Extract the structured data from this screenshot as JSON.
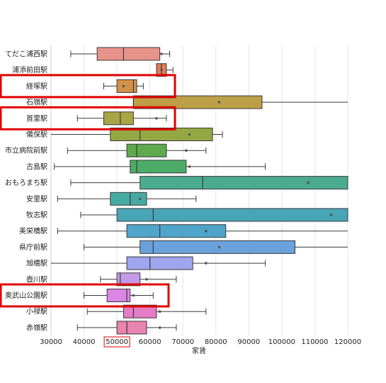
{
  "chart_data": {
    "type": "box",
    "title": "",
    "xlabel": "家賃",
    "ylabel": "",
    "xlim": [
      30000,
      120000
    ],
    "x_ticks": [
      30000,
      40000,
      50000,
      60000,
      70000,
      80000,
      90000,
      100000,
      110000,
      120000
    ],
    "x_tick_labels": [
      "30000",
      "40000",
      "50000",
      "60000",
      "70000",
      "80000",
      "90000",
      "100000",
      "110000",
      "120000"
    ],
    "grid": true,
    "orientation": "horizontal",
    "categories": [
      "てだこ浦西駅",
      "浦添前田駅",
      "経塚駅",
      "石嶺駅",
      "首里駅",
      "儀保駅",
      "市立病院前駅",
      "古島駅",
      "おもろまち駅",
      "安里駅",
      "牧志駅",
      "美栄橋駅",
      "県庁前駅",
      "旭橋駅",
      "壺川駅",
      "奥武山公園駅",
      "小禄駅",
      "赤嶺駅"
    ],
    "boxes": [
      {
        "min": 36000,
        "q1": 44000,
        "median": 52000,
        "q3": 63000,
        "max": 66000,
        "mean": 63500,
        "color": "#e8938a"
      },
      {
        "min": 62000,
        "q1": 62000,
        "median": 63500,
        "q3": 65000,
        "max": 67000,
        "mean": 63500,
        "color": "#e07b59"
      },
      {
        "min": 46000,
        "q1": 50000,
        "median": 55000,
        "q3": 56000,
        "max": 58000,
        "mean": 52000,
        "color": "#d4914a"
      },
      {
        "min": 55000,
        "q1": 55000,
        "median": 55000,
        "q3": 94000,
        "max": 120000,
        "mean": 81000,
        "color": "#bc9f47"
      },
      {
        "min": 38000,
        "q1": 46000,
        "median": 51000,
        "q3": 55000,
        "max": 65000,
        "mean": 62000,
        "color": "#a8a544"
      },
      {
        "min": 30000,
        "q1": 48000,
        "median": 57000,
        "q3": 79000,
        "max": 82000,
        "mean": 72000,
        "color": "#93a843"
      },
      {
        "min": 35000,
        "q1": 53000,
        "median": 56000,
        "q3": 65000,
        "max": 77000,
        "mean": 71000,
        "color": "#5eaa4c"
      },
      {
        "min": 31000,
        "q1": 54000,
        "median": 56000,
        "q3": 71000,
        "max": 95000,
        "mean": 72000,
        "color": "#4dab68"
      },
      {
        "min": 36000,
        "q1": 57000,
        "median": 76000,
        "q3": 120000,
        "max": 120000,
        "mean": 108000,
        "color": "#4aab8f"
      },
      {
        "min": 32000,
        "q1": 48000,
        "median": 54000,
        "q3": 59000,
        "max": 74000,
        "mean": 57000,
        "color": "#47a9a3"
      },
      {
        "min": 39000,
        "q1": 50000,
        "median": 61000,
        "q3": 120000,
        "max": 120000,
        "mean": 115000,
        "color": "#48a5b6"
      },
      {
        "min": 32000,
        "q1": 53000,
        "median": 63000,
        "q3": 83000,
        "max": 120000,
        "mean": 77000,
        "color": "#4fa4c9"
      },
      {
        "min": 40000,
        "q1": 57000,
        "median": 61000,
        "q3": 104000,
        "max": 120000,
        "mean": 81000,
        "color": "#6aa3dc"
      },
      {
        "min": 30000,
        "q1": 53000,
        "median": 60000,
        "q3": 73000,
        "max": 95000,
        "mean": 77000,
        "color": "#9ea5ec"
      },
      {
        "min": 45000,
        "q1": 50000,
        "median": 51000,
        "q3": 57000,
        "max": 68000,
        "mean": 59000,
        "color": "#c29ae8"
      },
      {
        "min": 40000,
        "q1": 47000,
        "median": 53000,
        "q3": 54000,
        "max": 61000,
        "mean": 55000,
        "color": "#dc86e4"
      },
      {
        "min": 41000,
        "q1": 52000,
        "median": 55000,
        "q3": 62000,
        "max": 77000,
        "mean": 63000,
        "color": "#e47cc6"
      },
      {
        "min": 38000,
        "q1": 50000,
        "median": 53000,
        "q3": 59000,
        "max": 68000,
        "mean": 63000,
        "color": "#e983b0"
      }
    ],
    "highlighted_categories": [
      "経塚駅",
      "首里駅",
      "奥武山公園駅"
    ],
    "highlighted_tick": "50000",
    "highlight_color": "#e00000"
  }
}
